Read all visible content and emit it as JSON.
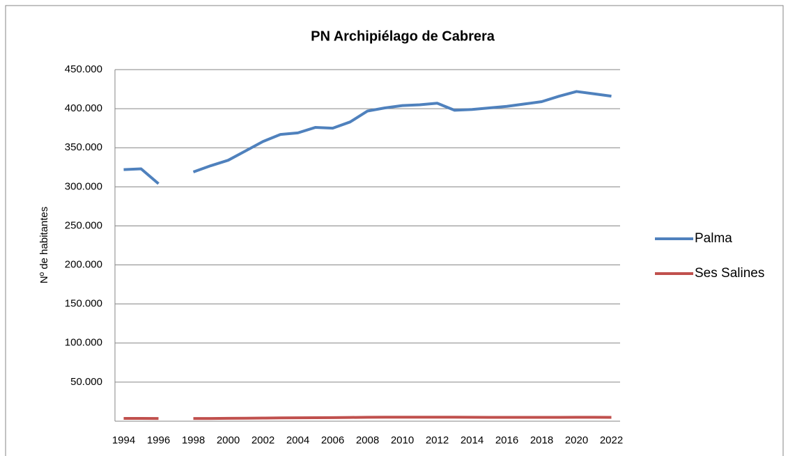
{
  "chart_data": {
    "type": "line",
    "title": "PN Archipiélago de Cabrera",
    "y_label": "Nº de habitantes",
    "x": [
      1994,
      1995,
      1996,
      1997,
      1998,
      1999,
      2000,
      2001,
      2002,
      2003,
      2004,
      2005,
      2006,
      2007,
      2008,
      2009,
      2010,
      2011,
      2012,
      2013,
      2014,
      2015,
      2016,
      2017,
      2018,
      2019,
      2020,
      2021,
      2022
    ],
    "xlim": [
      1993.5,
      2022.5
    ],
    "xticks": [
      1994,
      1996,
      1998,
      2000,
      2002,
      2004,
      2006,
      2008,
      2010,
      2012,
      2014,
      2016,
      2018,
      2020,
      2022
    ],
    "ylim": [
      0,
      450000
    ],
    "yticks": [
      {
        "value": 50000,
        "label": "50.000"
      },
      {
        "value": 100000,
        "label": "100.000"
      },
      {
        "value": 150000,
        "label": "150.000"
      },
      {
        "value": 200000,
        "label": "200.000"
      },
      {
        "value": 250000,
        "label": "250.000"
      },
      {
        "value": 300000,
        "label": "300.000"
      },
      {
        "value": 350000,
        "label": "350.000"
      },
      {
        "value": 400000,
        "label": "400.000"
      },
      {
        "value": 450000,
        "label": "450.000"
      }
    ],
    "grid": true,
    "legend": "right",
    "series": [
      {
        "name": "Palma",
        "color": "#4f81bd",
        "values": [
          322000,
          323000,
          304000,
          null,
          319000,
          327000,
          334000,
          346000,
          358000,
          367000,
          369000,
          376000,
          375000,
          383000,
          397000,
          401000,
          404000,
          405000,
          407000,
          398000,
          399000,
          401000,
          403000,
          406000,
          409000,
          416000,
          422000,
          419000,
          416000
        ]
      },
      {
        "name": "Ses Salines",
        "color": "#c0504d",
        "values": [
          3600,
          3600,
          3400,
          null,
          3400,
          3500,
          3700,
          3800,
          4000,
          4200,
          4300,
          4500,
          4600,
          4800,
          5000,
          5100,
          5100,
          5100,
          5100,
          5100,
          5000,
          4900,
          4900,
          4900,
          4900,
          4900,
          5000,
          5000,
          4900
        ]
      }
    ]
  }
}
